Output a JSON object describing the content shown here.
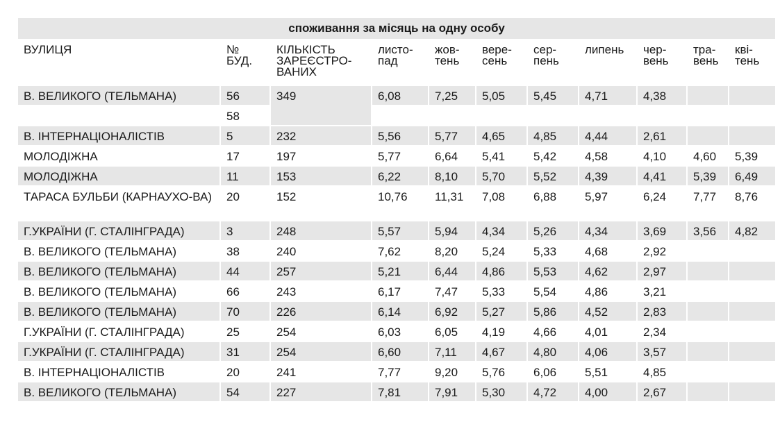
{
  "caption": "споживання за місяць на одну особу",
  "headers": {
    "street": "ВУЛИЦЯ",
    "building": [
      "№",
      "БУД."
    ],
    "registered": [
      "КІЛЬКІСТЬ",
      "ЗАРЕЄСТРО-",
      "ВАНИХ"
    ],
    "months": [
      [
        "листо-",
        "пад"
      ],
      [
        "жов-",
        "тень"
      ],
      [
        "вере-",
        "сень"
      ],
      [
        "сер-",
        "пень"
      ],
      [
        "липень"
      ],
      [
        "чер-",
        "вень"
      ],
      [
        "тра-",
        "вень"
      ],
      [
        "кві-",
        "тень"
      ]
    ]
  },
  "rows": [
    {
      "street": "В. ВЕЛИКОГО (ТЕЛЬМАНА)",
      "building": "56",
      "registered": "349",
      "values": [
        "6,08",
        "7,25",
        "5,05",
        "5,45",
        "4,71",
        "4,38",
        "",
        ""
      ]
    },
    {
      "street": "",
      "building": "58",
      "values": [
        "",
        "",
        "",
        "",
        "",
        "",
        "",
        ""
      ]
    },
    {
      "street": "В. ІНТЕРНАЦІОНАЛІСТІВ",
      "building": "5",
      "registered": "232",
      "values": [
        "5,56",
        "5,77",
        "4,65",
        "4,85",
        "4,44",
        "2,61",
        "",
        ""
      ]
    },
    {
      "street": "МОЛОДІЖНА",
      "building": "17",
      "registered": "197",
      "values": [
        "5,77",
        "6,64",
        "5,41",
        "5,42",
        "4,58",
        "4,10",
        "4,60",
        "5,39"
      ]
    },
    {
      "street": "МОЛОДІЖНА",
      "building": "11",
      "registered": "153",
      "values": [
        "6,22",
        "8,10",
        "5,70",
        "5,52",
        "4,39",
        "4,41",
        "5,39",
        "6,49"
      ]
    },
    {
      "street": "ТАРАСА БУЛЬБИ (КАРНАУХО-ВА)",
      "building": "20",
      "registered": "152",
      "values": [
        "10,76",
        "11,31",
        "7,08",
        "6,88",
        "5,97",
        "6,24",
        "7,77",
        "8,76"
      ]
    },
    {
      "street": "Г.УКРАЇНИ (Г. СТАЛІНГРАДА)",
      "building": "3",
      "registered": "248",
      "values": [
        "5,57",
        "5,94",
        "4,34",
        "5,26",
        "4,34",
        "3,69",
        "3,56",
        "4,82"
      ]
    },
    {
      "street": "В. ВЕЛИКОГО (ТЕЛЬМАНА)",
      "building": "38",
      "registered": "240",
      "values": [
        "7,62",
        "8,20",
        "5,24",
        "5,33",
        "4,68",
        "2,92",
        "",
        ""
      ]
    },
    {
      "street": "В. ВЕЛИКОГО (ТЕЛЬМАНА)",
      "building": "44",
      "registered": "257",
      "values": [
        "5,21",
        "6,44",
        "4,86",
        "5,53",
        "4,62",
        "2,97",
        "",
        ""
      ]
    },
    {
      "street": "В. ВЕЛИКОГО (ТЕЛЬМАНА)",
      "building": "66",
      "registered": "243",
      "values": [
        "6,17",
        "7,47",
        "5,33",
        "5,54",
        "4,86",
        "3,21",
        "",
        ""
      ]
    },
    {
      "street": "В. ВЕЛИКОГО (ТЕЛЬМАНА)",
      "building": "70",
      "registered": "226",
      "values": [
        "6,14",
        "6,92",
        "5,27",
        "5,86",
        "4,52",
        "2,83",
        "",
        ""
      ]
    },
    {
      "street": "Г.УКРАЇНИ (Г. СТАЛІНГРАДА)",
      "building": "25",
      "registered": "254",
      "values": [
        "6,03",
        "6,05",
        "4,19",
        "4,66",
        "4,01",
        "2,34",
        "",
        ""
      ]
    },
    {
      "street": "Г.УКРАЇНИ (Г. СТАЛІНГРАДА)",
      "building": "31",
      "registered": "254",
      "values": [
        "6,60",
        "7,11",
        "4,67",
        "4,80",
        "4,06",
        "3,57",
        "",
        ""
      ]
    },
    {
      "street": "В. ІНТЕРНАЦІОНАЛІСТІВ",
      "building": "20",
      "registered": "241",
      "values": [
        "7,77",
        "9,20",
        "5,76",
        "6,06",
        "5,51",
        "4,85",
        "",
        ""
      ]
    },
    {
      "street": "В. ВЕЛИКОГО (ТЕЛЬМАНА)",
      "building": "54",
      "registered": "227",
      "values": [
        "7,81",
        "7,91",
        "5,30",
        "4,72",
        "4,00",
        "2,67",
        "",
        ""
      ]
    }
  ],
  "colors": {
    "row_gray": "#e6e6e6",
    "row_white": "#ffffff",
    "text": "#1a1a1a"
  }
}
